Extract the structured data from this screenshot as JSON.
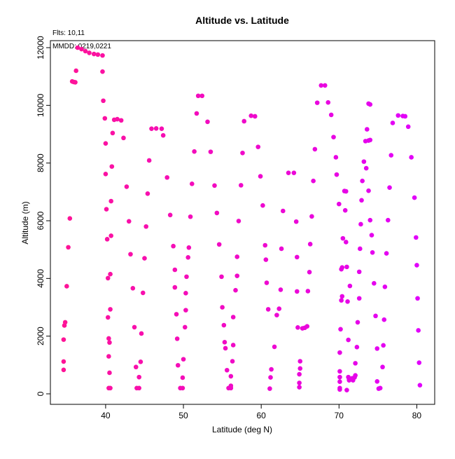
{
  "chart_data": {
    "type": "scatter",
    "title": "Altitude vs. Latitude",
    "annotations": [
      "Flts: 10,11",
      "MMDD: 0219,0221"
    ],
    "x_label": "Latitude (deg N)",
    "y_label": "Altitude (m)",
    "color_scale": [
      "#ff1493",
      "#e000ff"
    ],
    "xlim": [
      32.9,
      82.3
    ],
    "ylim": [
      -364,
      12243
    ],
    "xticks": [
      40,
      50,
      60,
      70,
      80
    ],
    "yticks": [
      0,
      2000,
      4000,
      6000,
      8000,
      10000,
      12000
    ],
    "x": [
      34.6,
      34.6,
      34.6,
      34.7,
      34.8,
      35.0,
      35.2,
      35.4,
      35.7,
      35.9,
      36.1,
      36.2,
      36.4,
      36.9,
      37.4,
      37.9,
      38.5,
      39.0,
      39.6,
      39.6,
      39.7,
      39.9,
      40.0,
      40.0,
      40.1,
      40.2,
      40.3,
      40.3,
      40.4,
      40.4,
      40.5,
      40.4,
      40.6,
      40.5,
      40.6,
      40.6,
      40.7,
      40.7,
      40.8,
      40.9,
      41.1,
      41.5,
      42.0,
      42.3,
      42.7,
      43.0,
      43.2,
      43.5,
      43.7,
      43.9,
      44.0,
      44.3,
      44.3,
      44.5,
      44.6,
      44.8,
      45.0,
      45.2,
      45.4,
      45.6,
      45.9,
      46.5,
      47.2,
      47.4,
      47.9,
      48.3,
      48.7,
      48.9,
      48.9,
      49.1,
      49.2,
      49.3,
      49.6,
      49.9,
      49.9,
      50.0,
      50.2,
      50.3,
      50.3,
      50.4,
      50.6,
      50.7,
      50.9,
      51.1,
      51.4,
      51.7,
      51.9,
      52.4,
      53.1,
      53.5,
      54.0,
      54.3,
      54.6,
      54.9,
      55.0,
      55.2,
      55.3,
      55.4,
      55.6,
      55.8,
      56.1,
      56.1,
      56.1,
      56.3,
      56.4,
      56.4,
      56.7,
      56.9,
      56.9,
      57.1,
      57.4,
      57.6,
      57.8,
      58.7,
      59.2,
      59.6,
      59.9,
      60.2,
      60.5,
      60.6,
      60.7,
      60.9,
      61.3,
      61.2,
      61.1,
      61.7,
      62.0,
      62.3,
      62.5,
      62.6,
      62.8,
      63.5,
      64.2,
      64.5,
      64.6,
      64.6,
      64.7,
      64.9,
      64.9,
      64.9,
      65.0,
      65.0,
      65.3,
      65.6,
      65.9,
      66.0,
      66.2,
      66.3,
      66.5,
      66.7,
      66.9,
      67.2,
      67.7,
      68.2,
      68.6,
      69.0,
      69.3,
      69.6,
      69.7,
      70.0,
      70.1,
      70.1,
      70.1,
      70.1,
      70.1,
      70.1,
      70.2,
      70.3,
      70.3,
      70.4,
      70.4,
      70.5,
      70.7,
      70.9,
      70.8,
      70.9,
      71.0,
      71.1,
      71.2,
      71.2,
      71.3,
      71.0,
      71.3,
      71.4,
      71.7,
      71.8,
      72.0,
      72.1,
      72.1,
      72.3,
      72.4,
      72.6,
      72.6,
      72.7,
      72.8,
      72.9,
      73.0,
      73.2,
      73.5,
      73.4,
      73.8,
      74.0,
      73.6,
      74.0,
      73.8,
      73.8,
      74.0,
      74.2,
      74.3,
      74.5,
      74.7,
      74.9,
      74.9,
      75.1,
      75.3,
      75.6,
      75.7,
      75.8,
      75.9,
      76.1,
      76.3,
      76.5,
      76.7,
      76.9,
      77.6,
      78.2,
      78.5,
      78.9,
      79.3,
      79.7,
      79.9,
      80.0,
      80.1,
      80.2,
      80.3,
      80.4
    ],
    "y": [
      830,
      1120,
      1880,
      2370,
      2480,
      3730,
      5080,
      6080,
      10830,
      10810,
      10800,
      11200,
      12000,
      11950,
      11880,
      11820,
      11780,
      11760,
      11730,
      11170,
      10160,
      9550,
      8680,
      7620,
      6400,
      5360,
      4010,
      2650,
      1920,
      1300,
      730,
      200,
      200,
      1780,
      2930,
      4150,
      5480,
      6680,
      7880,
      9040,
      9500,
      9520,
      9480,
      8870,
      7180,
      5980,
      4840,
      3660,
      2310,
      930,
      200,
      200,
      580,
      1110,
      2090,
      3500,
      4700,
      5800,
      6940,
      8090,
      9190,
      9200,
      9190,
      8960,
      7500,
      6200,
      5120,
      4300,
      3690,
      2760,
      1910,
      990,
      200,
      200,
      560,
      1200,
      2310,
      2900,
      3490,
      4060,
      4730,
      5070,
      6140,
      7280,
      8400,
      9720,
      10330,
      10330,
      9430,
      8390,
      7220,
      6270,
      5180,
      4060,
      3000,
      2380,
      1790,
      1580,
      820,
      200,
      200,
      280,
      610,
      1130,
      1690,
      2660,
      3590,
      4090,
      4750,
      5990,
      7230,
      8350,
      9450,
      9640,
      9620,
      8560,
      7540,
      6530,
      5150,
      4650,
      3850,
      2930,
      850,
      570,
      180,
      1630,
      2730,
      2950,
      3610,
      5030,
      6340,
      7660,
      7660,
      5970,
      4740,
      3550,
      2300,
      230,
      380,
      680,
      880,
      1130,
      2270,
      2290,
      2340,
      3560,
      4220,
      5190,
      6150,
      7380,
      8480,
      10090,
      10690,
      10690,
      10100,
      9670,
      8900,
      8200,
      7600,
      6580,
      1430,
      780,
      580,
      420,
      200,
      150,
      2240,
      3240,
      4320,
      3380,
      4380,
      5390,
      7030,
      7020,
      6360,
      5260,
      4400,
      3200,
      1870,
      580,
      470,
      130,
      500,
      3740,
      540,
      470,
      570,
      640,
      1060,
      1620,
      2480,
      3310,
      4230,
      5030,
      5880,
      6710,
      7380,
      8050,
      7820,
      8760,
      8780,
      8800,
      9170,
      10030,
      10060,
      7040,
      6020,
      5500,
      4900,
      3830,
      2700,
      1570,
      430,
      180,
      200,
      930,
      1680,
      2570,
      3710,
      4870,
      6020,
      7150,
      8270,
      9390,
      9650,
      9630,
      9620,
      9260,
      8200,
      6800,
      5420,
      4460,
      3310,
      2200,
      1080,
      300
    ]
  }
}
